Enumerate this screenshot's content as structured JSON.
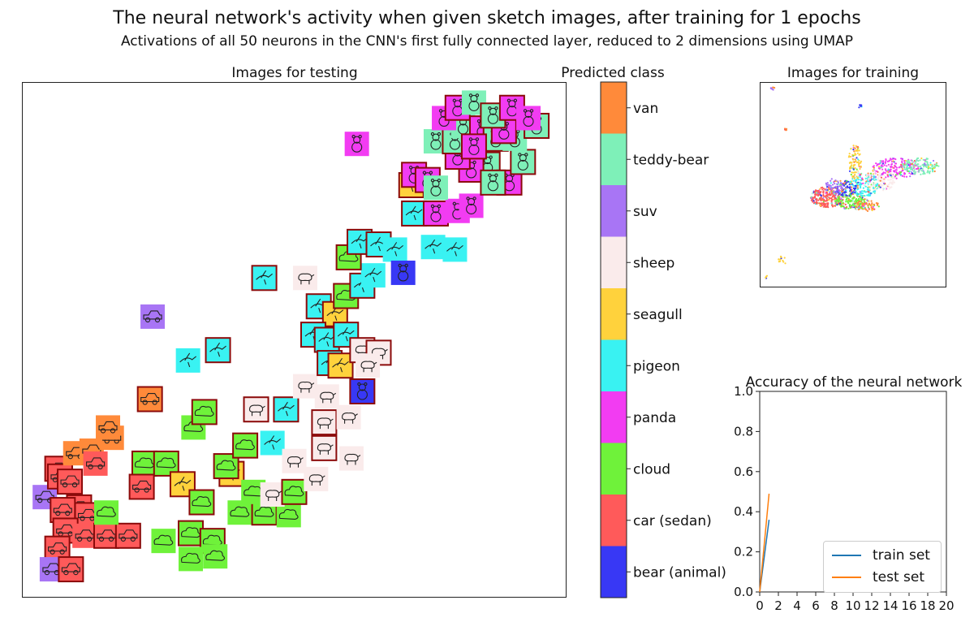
{
  "header": {
    "title": "The neural network's activity when given sketch images, after training for 1 epochs",
    "subtitle": "Activations of all 50 neurons in the  CNN's first fully connected layer, reduced to 2 dimensions using UMAP"
  },
  "chart_data": [
    {
      "type": "scatter",
      "title": "Images for testing",
      "axes": "off",
      "x": [
        0,
        10
      ],
      "y": [
        0,
        10
      ],
      "note_colors": "each point is a sketch thumbnail tinted by predicted class; dark-red border marks a misclassified image",
      "points": [
        {
          "x": 0.42,
          "y": 1.95,
          "c": "suv",
          "m": 0
        },
        {
          "x": 0.65,
          "y": 2.5,
          "c": "car (sedan)",
          "m": 1
        },
        {
          "x": 0.7,
          "y": 2.35,
          "c": "car (sedan)",
          "m": 1
        },
        {
          "x": 0.98,
          "y": 2.8,
          "c": "van",
          "m": 0
        },
        {
          "x": 1.28,
          "y": 2.85,
          "c": "van",
          "m": 0
        },
        {
          "x": 1.35,
          "y": 2.6,
          "c": "car (sedan)",
          "m": 0
        },
        {
          "x": 1.65,
          "y": 3.1,
          "c": "van",
          "m": 0
        },
        {
          "x": 1.58,
          "y": 3.3,
          "c": "van",
          "m": 0
        },
        {
          "x": 0.88,
          "y": 2.25,
          "c": "car (sedan)",
          "m": 1
        },
        {
          "x": 1.05,
          "y": 1.75,
          "c": "car (sedan)",
          "m": 1
        },
        {
          "x": 1.2,
          "y": 1.6,
          "c": "car (sedan)",
          "m": 1
        },
        {
          "x": 0.75,
          "y": 1.7,
          "c": "car (sedan)",
          "m": 1
        },
        {
          "x": 0.8,
          "y": 1.3,
          "c": "car (sedan)",
          "m": 1
        },
        {
          "x": 1.15,
          "y": 1.2,
          "c": "car (sedan)",
          "m": 0
        },
        {
          "x": 0.65,
          "y": 0.95,
          "c": "car (sedan)",
          "m": 1
        },
        {
          "x": 0.55,
          "y": 0.55,
          "c": "suv",
          "m": 0
        },
        {
          "x": 0.9,
          "y": 0.55,
          "c": "car (sedan)",
          "m": 1
        },
        {
          "x": 1.55,
          "y": 1.2,
          "c": "car (sedan)",
          "m": 1
        },
        {
          "x": 1.95,
          "y": 1.2,
          "c": "car (sedan)",
          "m": 1
        },
        {
          "x": 1.55,
          "y": 1.65,
          "c": "cloud",
          "m": 0
        },
        {
          "x": 2.25,
          "y": 2.6,
          "c": "cloud",
          "m": 1
        },
        {
          "x": 2.65,
          "y": 2.6,
          "c": "cloud",
          "m": 1
        },
        {
          "x": 2.2,
          "y": 2.15,
          "c": "car (sedan)",
          "m": 1
        },
        {
          "x": 2.95,
          "y": 2.2,
          "c": "seagull",
          "m": 1
        },
        {
          "x": 3.3,
          "y": 1.85,
          "c": "cloud",
          "m": 1
        },
        {
          "x": 2.6,
          "y": 1.1,
          "c": "cloud",
          "m": 0
        },
        {
          "x": 3.1,
          "y": 1.25,
          "c": "cloud",
          "m": 1
        },
        {
          "x": 3.5,
          "y": 1.1,
          "c": "cloud",
          "m": 1
        },
        {
          "x": 3.1,
          "y": 0.75,
          "c": "cloud",
          "m": 0
        },
        {
          "x": 3.55,
          "y": 0.8,
          "c": "cloud",
          "m": 0
        },
        {
          "x": 2.35,
          "y": 3.85,
          "c": "van",
          "m": 1
        },
        {
          "x": 2.4,
          "y": 5.45,
          "c": "suv",
          "m": 0
        },
        {
          "x": 3.05,
          "y": 4.6,
          "c": "pigeon",
          "m": 0
        },
        {
          "x": 3.6,
          "y": 4.8,
          "c": "pigeon",
          "m": 1
        },
        {
          "x": 3.15,
          "y": 3.3,
          "c": "cloud",
          "m": 0
        },
        {
          "x": 3.35,
          "y": 3.6,
          "c": "cloud",
          "m": 1
        },
        {
          "x": 3.85,
          "y": 2.4,
          "c": "seagull",
          "m": 1
        },
        {
          "x": 3.75,
          "y": 2.55,
          "c": "cloud",
          "m": 1
        },
        {
          "x": 4.1,
          "y": 2.95,
          "c": "cloud",
          "m": 1
        },
        {
          "x": 4.3,
          "y": 3.65,
          "c": "sheep",
          "m": 1
        },
        {
          "x": 4.85,
          "y": 3.65,
          "c": "pigeon",
          "m": 1
        },
        {
          "x": 4.6,
          "y": 3.0,
          "c": "pigeon",
          "m": 0
        },
        {
          "x": 4.0,
          "y": 1.65,
          "c": "cloud",
          "m": 0
        },
        {
          "x": 4.45,
          "y": 1.65,
          "c": "cloud",
          "m": 1
        },
        {
          "x": 4.9,
          "y": 1.6,
          "c": "cloud",
          "m": 0
        },
        {
          "x": 4.25,
          "y": 2.05,
          "c": "cloud",
          "m": 0
        },
        {
          "x": 4.6,
          "y": 2.0,
          "c": "sheep",
          "m": 0
        },
        {
          "x": 5.0,
          "y": 2.05,
          "c": "cloud",
          "m": 1
        },
        {
          "x": 5.0,
          "y": 2.65,
          "c": "sheep",
          "m": 0
        },
        {
          "x": 5.4,
          "y": 2.3,
          "c": "sheep",
          "m": 0
        },
        {
          "x": 5.55,
          "y": 2.9,
          "c": "sheep",
          "m": 1
        },
        {
          "x": 5.55,
          "y": 3.4,
          "c": "sheep",
          "m": 1
        },
        {
          "x": 5.6,
          "y": 3.9,
          "c": "sheep",
          "m": 0
        },
        {
          "x": 6.0,
          "y": 3.5,
          "c": "sheep",
          "m": 0
        },
        {
          "x": 6.25,
          "y": 4.0,
          "c": "bear (animal)",
          "m": 1
        },
        {
          "x": 6.05,
          "y": 2.7,
          "c": "sheep",
          "m": 0
        },
        {
          "x": 5.2,
          "y": 4.1,
          "c": "sheep",
          "m": 0
        },
        {
          "x": 4.45,
          "y": 6.2,
          "c": "pigeon",
          "m": 1
        },
        {
          "x": 5.2,
          "y": 6.2,
          "c": "sheep",
          "m": 0
        },
        {
          "x": 5.45,
          "y": 5.65,
          "c": "pigeon",
          "m": 1
        },
        {
          "x": 5.75,
          "y": 5.5,
          "c": "seagull",
          "m": 1
        },
        {
          "x": 5.35,
          "y": 5.1,
          "c": "pigeon",
          "m": 1
        },
        {
          "x": 5.6,
          "y": 5.0,
          "c": "pigeon",
          "m": 1
        },
        {
          "x": 5.65,
          "y": 4.55,
          "c": "pigeon",
          "m": 1
        },
        {
          "x": 5.85,
          "y": 4.5,
          "c": "seagull",
          "m": 1
        },
        {
          "x": 5.95,
          "y": 5.1,
          "c": "pigeon",
          "m": 1
        },
        {
          "x": 6.25,
          "y": 4.8,
          "c": "sheep",
          "m": 1
        },
        {
          "x": 6.55,
          "y": 4.75,
          "c": "sheep",
          "m": 1
        },
        {
          "x": 6.35,
          "y": 4.5,
          "c": "sheep",
          "m": 0
        },
        {
          "x": 5.95,
          "y": 5.85,
          "c": "cloud",
          "m": 1
        },
        {
          "x": 6.25,
          "y": 6.05,
          "c": "pigeon",
          "m": 1
        },
        {
          "x": 6.45,
          "y": 6.25,
          "c": "pigeon",
          "m": 0
        },
        {
          "x": 6.0,
          "y": 6.6,
          "c": "cloud",
          "m": 1
        },
        {
          "x": 6.2,
          "y": 6.9,
          "c": "pigeon",
          "m": 1
        },
        {
          "x": 6.55,
          "y": 6.85,
          "c": "pigeon",
          "m": 1
        },
        {
          "x": 6.85,
          "y": 6.75,
          "c": "pigeon",
          "m": 0
        },
        {
          "x": 7.0,
          "y": 6.3,
          "c": "bear (animal)",
          "m": 0
        },
        {
          "x": 7.55,
          "y": 6.8,
          "c": "pigeon",
          "m": 0
        },
        {
          "x": 7.95,
          "y": 6.75,
          "c": "pigeon",
          "m": 0
        },
        {
          "x": 7.2,
          "y": 7.45,
          "c": "pigeon",
          "m": 1
        },
        {
          "x": 6.15,
          "y": 8.8,
          "c": "panda",
          "m": 0
        },
        {
          "x": 7.15,
          "y": 8.0,
          "c": "seagull",
          "m": 1
        },
        {
          "x": 7.2,
          "y": 8.2,
          "c": "panda",
          "m": 1
        },
        {
          "x": 7.45,
          "y": 8.1,
          "c": "panda",
          "m": 1
        },
        {
          "x": 7.6,
          "y": 7.45,
          "c": "panda",
          "m": 1
        },
        {
          "x": 8.0,
          "y": 7.5,
          "c": "panda",
          "m": 0
        },
        {
          "x": 8.25,
          "y": 7.6,
          "c": "panda",
          "m": 0
        },
        {
          "x": 8.55,
          "y": 8.4,
          "c": "teddy-bear",
          "m": 1
        },
        {
          "x": 8.25,
          "y": 8.3,
          "c": "panda",
          "m": 1
        },
        {
          "x": 8.0,
          "y": 8.55,
          "c": "panda",
          "m": 1
        },
        {
          "x": 8.95,
          "y": 8.05,
          "c": "panda",
          "m": 1
        },
        {
          "x": 9.2,
          "y": 8.45,
          "c": "teddy-bear",
          "m": 1
        },
        {
          "x": 8.65,
          "y": 8.05,
          "c": "teddy-bear",
          "m": 1
        },
        {
          "x": 7.6,
          "y": 8.85,
          "c": "teddy-bear",
          "m": 0
        },
        {
          "x": 7.95,
          "y": 8.85,
          "c": "teddy-bear",
          "m": 1
        },
        {
          "x": 8.1,
          "y": 9.15,
          "c": "teddy-bear",
          "m": 0
        },
        {
          "x": 8.45,
          "y": 9.1,
          "c": "panda",
          "m": 1
        },
        {
          "x": 8.7,
          "y": 8.9,
          "c": "teddy-bear",
          "m": 1
        },
        {
          "x": 9.05,
          "y": 8.9,
          "c": "teddy-bear",
          "m": 0
        },
        {
          "x": 8.3,
          "y": 8.75,
          "c": "panda",
          "m": 1
        },
        {
          "x": 8.85,
          "y": 9.05,
          "c": "panda",
          "m": 1
        },
        {
          "x": 7.75,
          "y": 9.3,
          "c": "panda",
          "m": 0
        },
        {
          "x": 8.0,
          "y": 9.5,
          "c": "panda",
          "m": 1
        },
        {
          "x": 8.3,
          "y": 9.6,
          "c": "teddy-bear",
          "m": 0
        },
        {
          "x": 8.65,
          "y": 9.35,
          "c": "teddy-bear",
          "m": 1
        },
        {
          "x": 9.0,
          "y": 9.5,
          "c": "panda",
          "m": 1
        },
        {
          "x": 9.45,
          "y": 9.15,
          "c": "teddy-bear",
          "m": 1
        },
        {
          "x": 9.3,
          "y": 9.3,
          "c": "panda",
          "m": 0
        },
        {
          "x": 7.6,
          "y": 7.95,
          "c": "teddy-bear",
          "m": 0
        }
      ]
    },
    {
      "type": "heatmap",
      "title": "Predicted class",
      "colorbar": true,
      "categories": [
        "bear (animal)",
        "car (sedan)",
        "cloud",
        "panda",
        "pigeon",
        "seagull",
        "sheep",
        "suv",
        "teddy-bear",
        "van"
      ],
      "colors": [
        "#3838f5",
        "#ff5a5a",
        "#6ff23a",
        "#f23cf2",
        "#39f2f2",
        "#ffd23c",
        "#faebeb",
        "#a875f5",
        "#7ef0b8",
        "#ff8a3a"
      ]
    },
    {
      "type": "scatter",
      "title": "Images for training",
      "axes": "off",
      "x": [
        0,
        10
      ],
      "y": [
        0,
        10
      ]
    },
    {
      "type": "line",
      "title": "Accuracy of the neural network",
      "x": [
        0,
        1
      ],
      "series": [
        {
          "name": "train set",
          "values": [
            0.0,
            0.36
          ],
          "color": "#1f77b4"
        },
        {
          "name": "test set",
          "values": [
            0.0,
            0.49
          ],
          "color": "#ff7f0e"
        }
      ],
      "xlim": [
        0,
        20
      ],
      "ylim": [
        0.0,
        1.0
      ],
      "xticks": [
        "0",
        "2",
        "4",
        "6",
        "8",
        "10",
        "12",
        "14",
        "16",
        "18",
        "20"
      ],
      "yticks": [
        "0.0",
        "0.2",
        "0.4",
        "0.6",
        "0.8",
        "1.0"
      ],
      "legend": "bottom-right",
      "grid": false
    }
  ]
}
